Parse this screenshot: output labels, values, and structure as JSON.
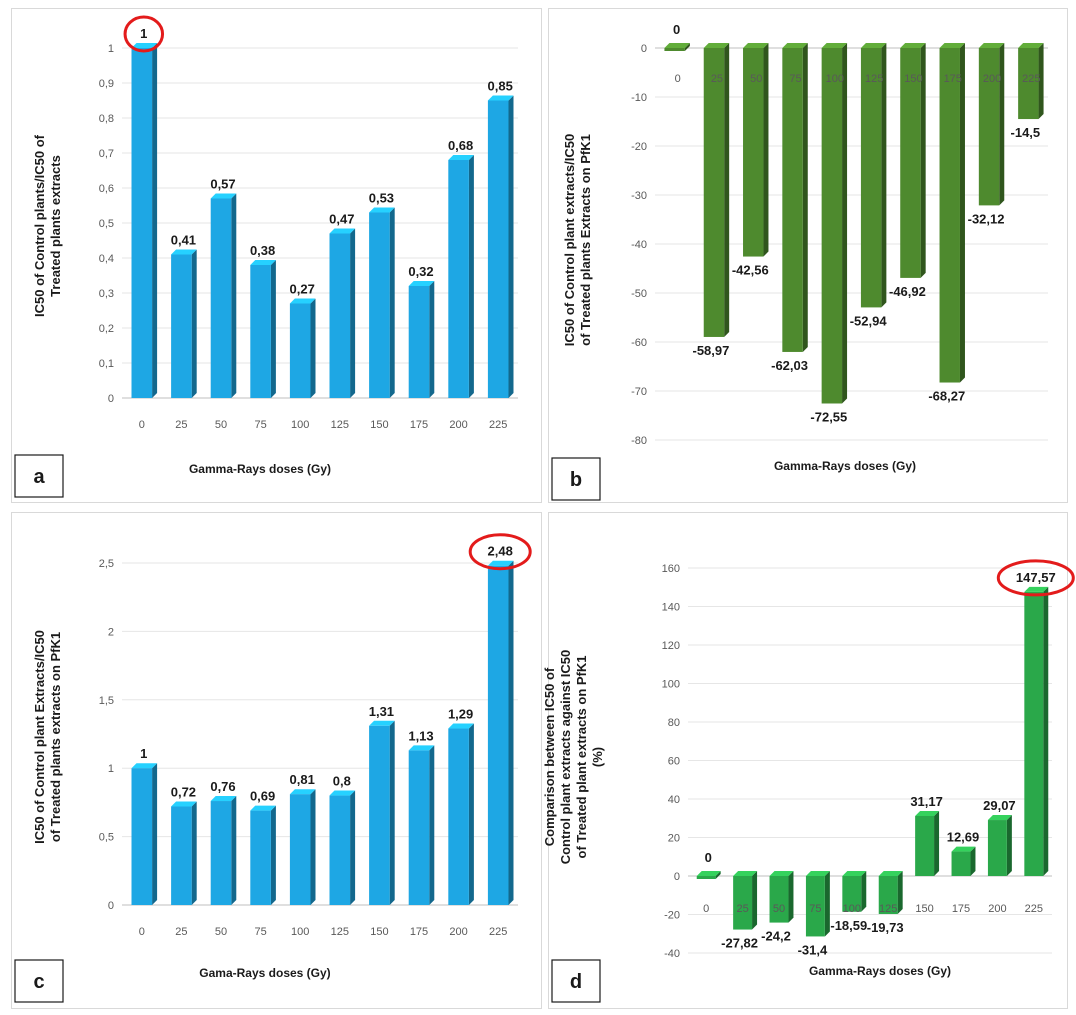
{
  "chart_data": [
    {
      "id": "a",
      "panel_label": "a",
      "type": "bar",
      "categories": [
        "0",
        "25",
        "50",
        "75",
        "100",
        "125",
        "150",
        "175",
        "200",
        "225"
      ],
      "values": [
        1,
        0.41,
        0.57,
        0.38,
        0.27,
        0.47,
        0.53,
        0.32,
        0.68,
        0.85
      ],
      "value_labels": [
        "1",
        "0,41",
        "0,57",
        "0,38",
        "0,27",
        "0,47",
        "0,53",
        "0,32",
        "0,68",
        "0,85"
      ],
      "yticks": [
        0,
        0.1,
        0.2,
        0.3,
        0.4,
        0.5,
        0.6,
        0.7,
        0.8,
        0.9,
        1
      ],
      "ytick_labels": [
        "0",
        "0,1",
        "0,2",
        "0,3",
        "0,4",
        "0,5",
        "0,6",
        "0,7",
        "0,8",
        "0,9",
        "1"
      ],
      "ylim": [
        0,
        1
      ],
      "xlabel": "Gamma-Rays doses (Gy)",
      "ylabel_lines": [
        "IC50 of Control plants/IC50 of",
        "Treated plants extracts"
      ],
      "bar_color": "#1ea7e4",
      "highlight_index": 0,
      "show_x_ticks_below": true
    },
    {
      "id": "b",
      "panel_label": "b",
      "type": "bar",
      "categories": [
        "0",
        "25",
        "50",
        "75",
        "100",
        "125",
        "150",
        "175",
        "200",
        "225"
      ],
      "values": [
        0,
        -58.97,
        -42.56,
        -62.03,
        -72.55,
        -52.94,
        -46.92,
        -68.27,
        -32.12,
        -14.5
      ],
      "value_labels": [
        "0",
        "-58,97",
        "-42,56",
        "-62,03",
        "-72,55",
        "-52,94",
        "-46,92",
        "-68,27",
        "-32,12",
        "-14,5"
      ],
      "yticks": [
        0,
        -10,
        -20,
        -30,
        -40,
        -50,
        -60,
        -70,
        -80
      ],
      "ytick_labels": [
        "0",
        "-10",
        "-20",
        "-30",
        "-40",
        "-50",
        "-60",
        "-70",
        "-80"
      ],
      "ylim": [
        -80,
        0
      ],
      "xlabel": "Gamma-Rays doses (Gy)",
      "ylabel_lines": [
        "IC50 of Control plant extracts/IC50",
        "of Treated plants Extracts on PfK1"
      ],
      "bar_color": "#4e8a2e",
      "highlight_index": null,
      "show_x_ticks_below": false
    },
    {
      "id": "c",
      "panel_label": "c",
      "type": "bar",
      "categories": [
        "0",
        "25",
        "50",
        "75",
        "100",
        "125",
        "150",
        "175",
        "200",
        "225"
      ],
      "values": [
        1,
        0.72,
        0.76,
        0.69,
        0.81,
        0.8,
        1.31,
        1.13,
        1.29,
        2.48
      ],
      "value_labels": [
        "1",
        "0,72",
        "0,76",
        "0,69",
        "0,81",
        "0,8",
        "1,31",
        "1,13",
        "1,29",
        "2,48"
      ],
      "yticks": [
        0,
        0.5,
        1,
        1.5,
        2,
        2.5
      ],
      "ytick_labels": [
        "0",
        "0,5",
        "1",
        "1,5",
        "2",
        "2,5"
      ],
      "ylim": [
        0,
        2.5
      ],
      "xlabel": "Gama-Rays doses (Gy)",
      "ylabel_lines": [
        "IC50 of Control plant Extracts/IC50",
        "of Treated plants extracts on PfK1"
      ],
      "bar_color": "#1ea7e4",
      "highlight_index": 9,
      "show_x_ticks_below": true
    },
    {
      "id": "d",
      "panel_label": "d",
      "type": "bar",
      "categories": [
        "0",
        "25",
        "50",
        "75",
        "100",
        "125",
        "150",
        "175",
        "200",
        "225"
      ],
      "values": [
        0,
        -27.82,
        -24.2,
        -31.4,
        -18.59,
        -19.73,
        31.17,
        12.69,
        29.07,
        147.57
      ],
      "value_labels": [
        "0",
        "-27,82",
        "-24,2",
        "-31,4",
        "-18,59",
        "-19,73",
        "31,17",
        "12,69",
        "29,07",
        "147,57"
      ],
      "yticks": [
        -40,
        -20,
        0,
        20,
        40,
        60,
        80,
        100,
        120,
        140,
        160
      ],
      "ytick_labels": [
        "-40",
        "-20",
        "0",
        "20",
        "40",
        "60",
        "80",
        "100",
        "120",
        "140",
        "160"
      ],
      "ylim": [
        -40,
        160
      ],
      "xlabel": "Gamma-Rays doses (Gy)",
      "ylabel_lines": [
        "Comparison between IC50 of",
        "Control plant extracts against IC50",
        "of Treated plant extracts on PfK1",
        "(%)"
      ],
      "bar_color": "#2aa84a",
      "highlight_index": 9,
      "show_x_ticks_below": false
    }
  ]
}
